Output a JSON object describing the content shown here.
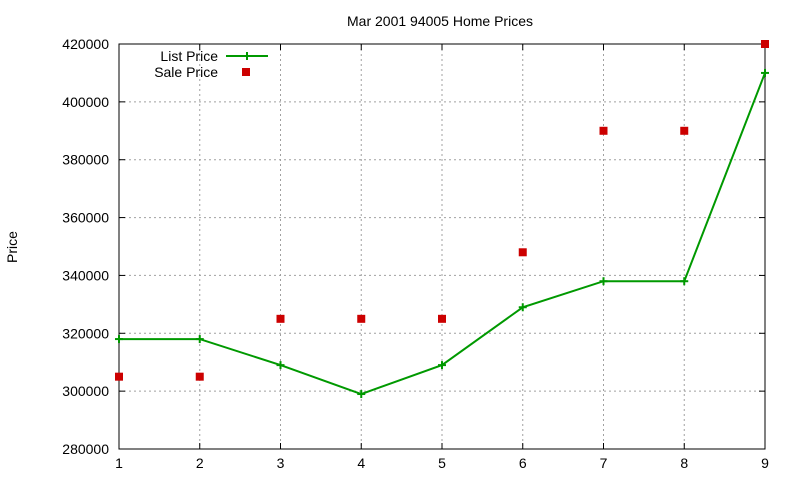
{
  "chart_data": {
    "type": "line",
    "title": "Mar 2001 94005 Home Prices",
    "xlabel": "",
    "ylabel": "Price",
    "xlim": [
      1,
      9
    ],
    "ylim": [
      280000,
      420000
    ],
    "x_ticks": [
      1,
      2,
      3,
      4,
      5,
      6,
      7,
      8,
      9
    ],
    "y_ticks": [
      280000,
      300000,
      320000,
      340000,
      360000,
      380000,
      400000,
      420000
    ],
    "grid": true,
    "legend_position": "top-left",
    "series": [
      {
        "name": "List Price",
        "style": "line+plus",
        "color": "#009900",
        "x": [
          1,
          2,
          3,
          4,
          5,
          6,
          7,
          8,
          9
        ],
        "values": [
          318000,
          318000,
          309000,
          299000,
          309000,
          329000,
          338000,
          338000,
          410000
        ]
      },
      {
        "name": "Sale Price",
        "style": "square-points",
        "color": "#cc0000",
        "x": [
          1,
          2,
          3,
          4,
          5,
          6,
          7,
          8,
          9
        ],
        "values": [
          305000,
          305000,
          325000,
          325000,
          325000,
          348000,
          390000,
          390000,
          420000
        ]
      }
    ]
  }
}
